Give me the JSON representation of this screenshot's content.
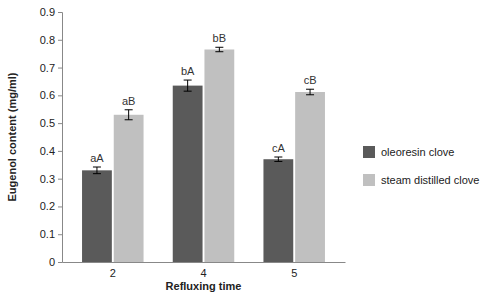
{
  "chart_data": {
    "type": "bar",
    "x_label": "Refluxing time",
    "y_label": "Eugenol content (mg/ml)",
    "categories": [
      "2",
      "4",
      "5"
    ],
    "series": [
      {
        "name": "oleoresin clove",
        "color": "#5a5a5a",
        "values": [
          0.33,
          0.635,
          0.37
        ],
        "errors": [
          0.012,
          0.02,
          0.008
        ],
        "annotations": [
          "aA",
          "bA",
          "cA"
        ]
      },
      {
        "name": "steam distilled clove",
        "color": "#c0c0c0",
        "values": [
          0.53,
          0.765,
          0.612
        ],
        "errors": [
          0.018,
          0.008,
          0.01
        ],
        "annotations": [
          "aB",
          "bB",
          "cB"
        ]
      }
    ],
    "ylim": [
      0,
      0.9
    ],
    "yticks": [
      0,
      0.1,
      0.2,
      0.3,
      0.4,
      0.5,
      0.6,
      0.7,
      0.8,
      0.9
    ],
    "grid": false,
    "legend": "right"
  }
}
